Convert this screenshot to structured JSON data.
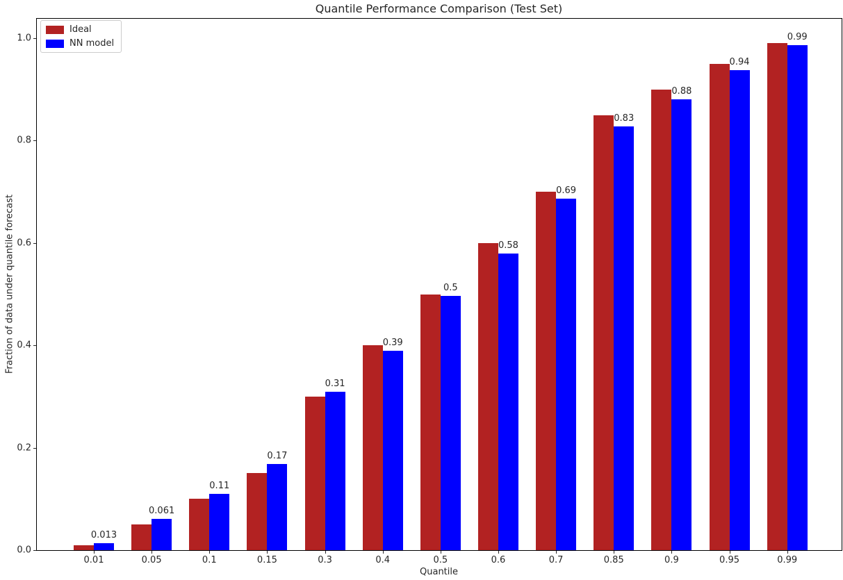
{
  "chart_data": {
    "type": "bar",
    "title": "Quantile Performance Comparison (Test Set)",
    "xlabel": "Quantile",
    "ylabel": "Fraction of data under quantile forecast",
    "categories": [
      "0.01",
      "0.05",
      "0.1",
      "0.15",
      "0.3",
      "0.4",
      "0.5",
      "0.6",
      "0.7",
      "0.85",
      "0.9",
      "0.95",
      "0.99"
    ],
    "series": [
      {
        "name": "Ideal",
        "color": "#b22222",
        "values": [
          0.01,
          0.05,
          0.1,
          0.15,
          0.3,
          0.4,
          0.5,
          0.6,
          0.7,
          0.85,
          0.9,
          0.95,
          0.99
        ]
      },
      {
        "name": "NN model",
        "color": "#0000ff",
        "values": [
          0.013,
          0.061,
          0.11,
          0.168,
          0.31,
          0.39,
          0.496,
          0.58,
          0.687,
          0.828,
          0.881,
          0.937,
          0.986
        ],
        "value_labels": [
          "0.013",
          "0.061",
          "0.11",
          "0.17",
          "0.31",
          "0.39",
          "0.5",
          "0.58",
          "0.69",
          "0.83",
          "0.88",
          "0.94",
          "0.99"
        ]
      }
    ],
    "yticks": [
      "0.0",
      "0.2",
      "0.4",
      "0.6",
      "0.8",
      "1.0"
    ],
    "ylim": [
      0,
      1.04
    ],
    "grid": false,
    "legend_position": "upper left",
    "value_labels_on": "NN model"
  }
}
